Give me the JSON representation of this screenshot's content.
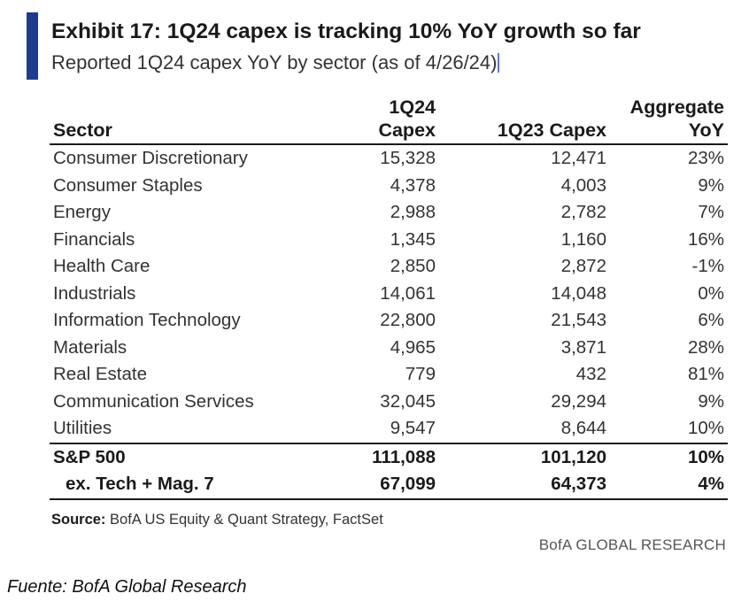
{
  "exhibit": {
    "title": "Exhibit 17: 1Q24 capex is tracking 10% YoY growth so far",
    "subtitle": "Reported 1Q24 capex YoY by sector (as of 4/26/24)"
  },
  "table": {
    "headers": {
      "sector": "Sector",
      "q124": "1Q24 Capex",
      "q123": "1Q23 Capex",
      "yoy_line1": "Aggregate",
      "yoy_line2": "YoY"
    },
    "rows": [
      {
        "sector": "Consumer Discretionary",
        "q124": "15,328",
        "q123": "12,471",
        "yoy": "23%"
      },
      {
        "sector": "Consumer Staples",
        "q124": "4,378",
        "q123": "4,003",
        "yoy": "9%"
      },
      {
        "sector": "Energy",
        "q124": "2,988",
        "q123": "2,782",
        "yoy": "7%"
      },
      {
        "sector": "Financials",
        "q124": "1,345",
        "q123": "1,160",
        "yoy": "16%"
      },
      {
        "sector": "Health Care",
        "q124": "2,850",
        "q123": "2,872",
        "yoy": "-1%"
      },
      {
        "sector": "Industrials",
        "q124": "14,061",
        "q123": "14,048",
        "yoy": "0%"
      },
      {
        "sector": "Information Technology",
        "q124": "22,800",
        "q123": "21,543",
        "yoy": "6%"
      },
      {
        "sector": "Materials",
        "q124": "4,965",
        "q123": "3,871",
        "yoy": "28%"
      },
      {
        "sector": "Real Estate",
        "q124": "779",
        "q123": "432",
        "yoy": "81%"
      },
      {
        "sector": "Communication Services",
        "q124": "32,045",
        "q123": "29,294",
        "yoy": "9%"
      },
      {
        "sector": "Utilities",
        "q124": "9,547",
        "q123": "8,644",
        "yoy": "10%"
      }
    ],
    "total": {
      "sector": "S&P 500",
      "q124": "111,088",
      "q123": "101,120",
      "yoy": "10%"
    },
    "subtotal": {
      "sector": "ex. Tech + Mag. 7",
      "q124": "67,099",
      "q123": "64,373",
      "yoy": "4%"
    }
  },
  "source": {
    "label": "Source:",
    "text": " BofA US Equity & Quant Strategy, FactSet"
  },
  "brand": "BofA GLOBAL RESEARCH",
  "caption": "Fuente: BofA Global Research",
  "colors": {
    "accent": "#1f3b8f"
  }
}
